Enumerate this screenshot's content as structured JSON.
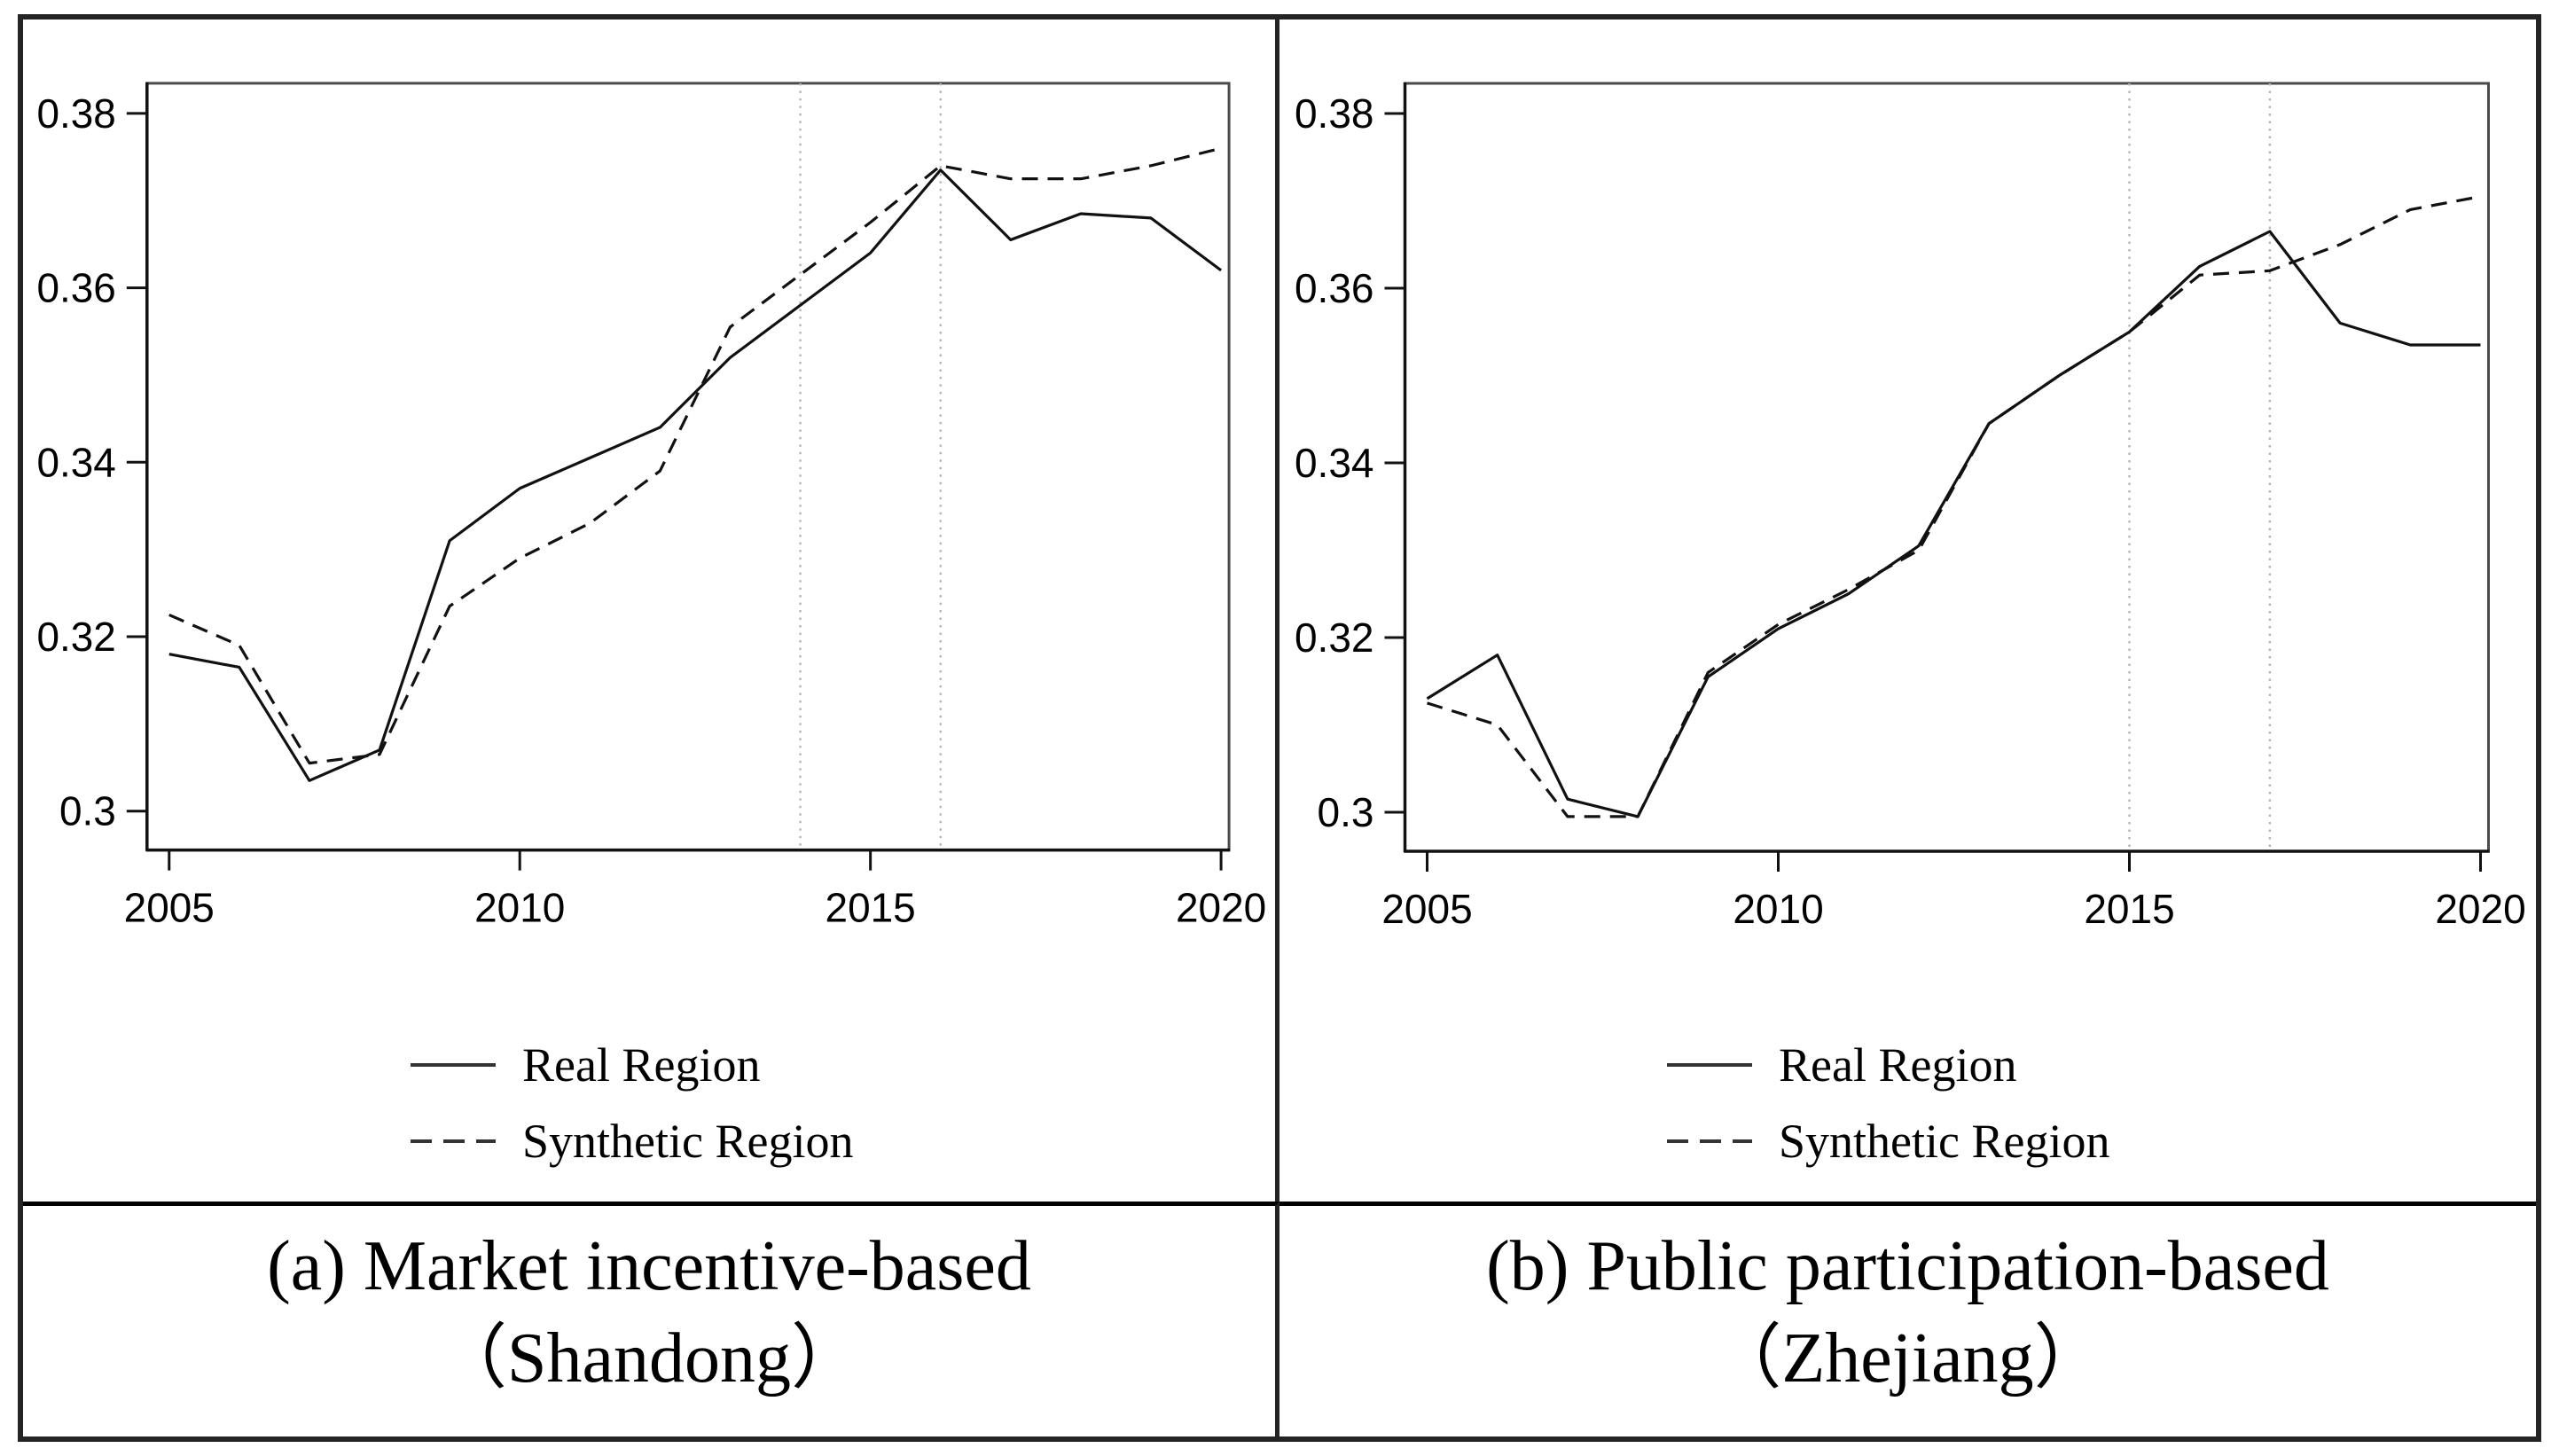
{
  "figure": {
    "background": "#ffffff",
    "border_color": "#242424",
    "axis_color": "#111111",
    "box_color": "#4a4a4a",
    "reference_line_color": "#b5b5b5",
    "line_color": "#111111"
  },
  "legend": {
    "real_label": "Real Region",
    "synthetic_label": "Synthetic Region"
  },
  "chart_data": [
    {
      "type": "line",
      "panel": "a",
      "caption_line1": "(a) Market incentive-based",
      "caption_line2": "（Shandong）",
      "x": [
        2005,
        2006,
        2007,
        2008,
        2009,
        2010,
        2011,
        2012,
        2013,
        2014,
        2015,
        2016,
        2017,
        2018,
        2019,
        2020
      ],
      "series": [
        {
          "name": "Real Region",
          "style": "solid",
          "values": [
            0.318,
            0.3165,
            0.3035,
            0.307,
            0.331,
            0.337,
            0.3405,
            0.344,
            0.352,
            0.358,
            0.364,
            0.3735,
            0.3655,
            0.3685,
            0.368,
            0.362
          ]
        },
        {
          "name": "Synthetic Region",
          "style": "dashed",
          "values": [
            0.3225,
            0.319,
            0.3055,
            0.3065,
            0.3235,
            0.329,
            0.333,
            0.339,
            0.3555,
            0.3615,
            0.3675,
            0.374,
            0.3725,
            0.3725,
            0.374,
            0.376
          ]
        }
      ],
      "reference_lines_x": [
        2014,
        2016
      ],
      "xticks": [
        2005,
        2010,
        2015,
        2020
      ],
      "yticks": [
        0.3,
        0.32,
        0.34,
        0.36,
        0.38
      ],
      "ytick_labels": [
        "0.3",
        "0.32",
        "0.34",
        "0.36",
        "0.38"
      ],
      "ylim": [
        0.3,
        0.38
      ],
      "grid": false,
      "legend_position": "below"
    },
    {
      "type": "line",
      "panel": "b",
      "caption_line1": "(b) Public participation-based",
      "caption_line2": "（Zhejiang）",
      "x": [
        2005,
        2006,
        2007,
        2008,
        2009,
        2010,
        2011,
        2012,
        2013,
        2014,
        2015,
        2016,
        2017,
        2018,
        2019,
        2020
      ],
      "series": [
        {
          "name": "Real Region",
          "style": "solid",
          "values": [
            0.313,
            0.318,
            0.3015,
            0.2995,
            0.3155,
            0.321,
            0.325,
            0.3305,
            0.3445,
            0.35,
            0.355,
            0.3625,
            0.3665,
            0.356,
            0.3535,
            0.3535
          ]
        },
        {
          "name": "Synthetic Region",
          "style": "dashed",
          "values": [
            0.3125,
            0.31,
            0.2995,
            0.2995,
            0.316,
            0.3215,
            0.3255,
            0.33,
            0.3445,
            0.35,
            0.355,
            0.3615,
            0.362,
            0.365,
            0.369,
            0.3705
          ]
        }
      ],
      "reference_lines_x": [
        2015,
        2017
      ],
      "xticks": [
        2005,
        2010,
        2015,
        2020
      ],
      "yticks": [
        0.3,
        0.32,
        0.34,
        0.36,
        0.38
      ],
      "ytick_labels": [
        "0.3",
        "0.32",
        "0.34",
        "0.36",
        "0.38"
      ],
      "ylim": [
        0.3,
        0.38
      ],
      "grid": false,
      "legend_position": "below"
    }
  ]
}
